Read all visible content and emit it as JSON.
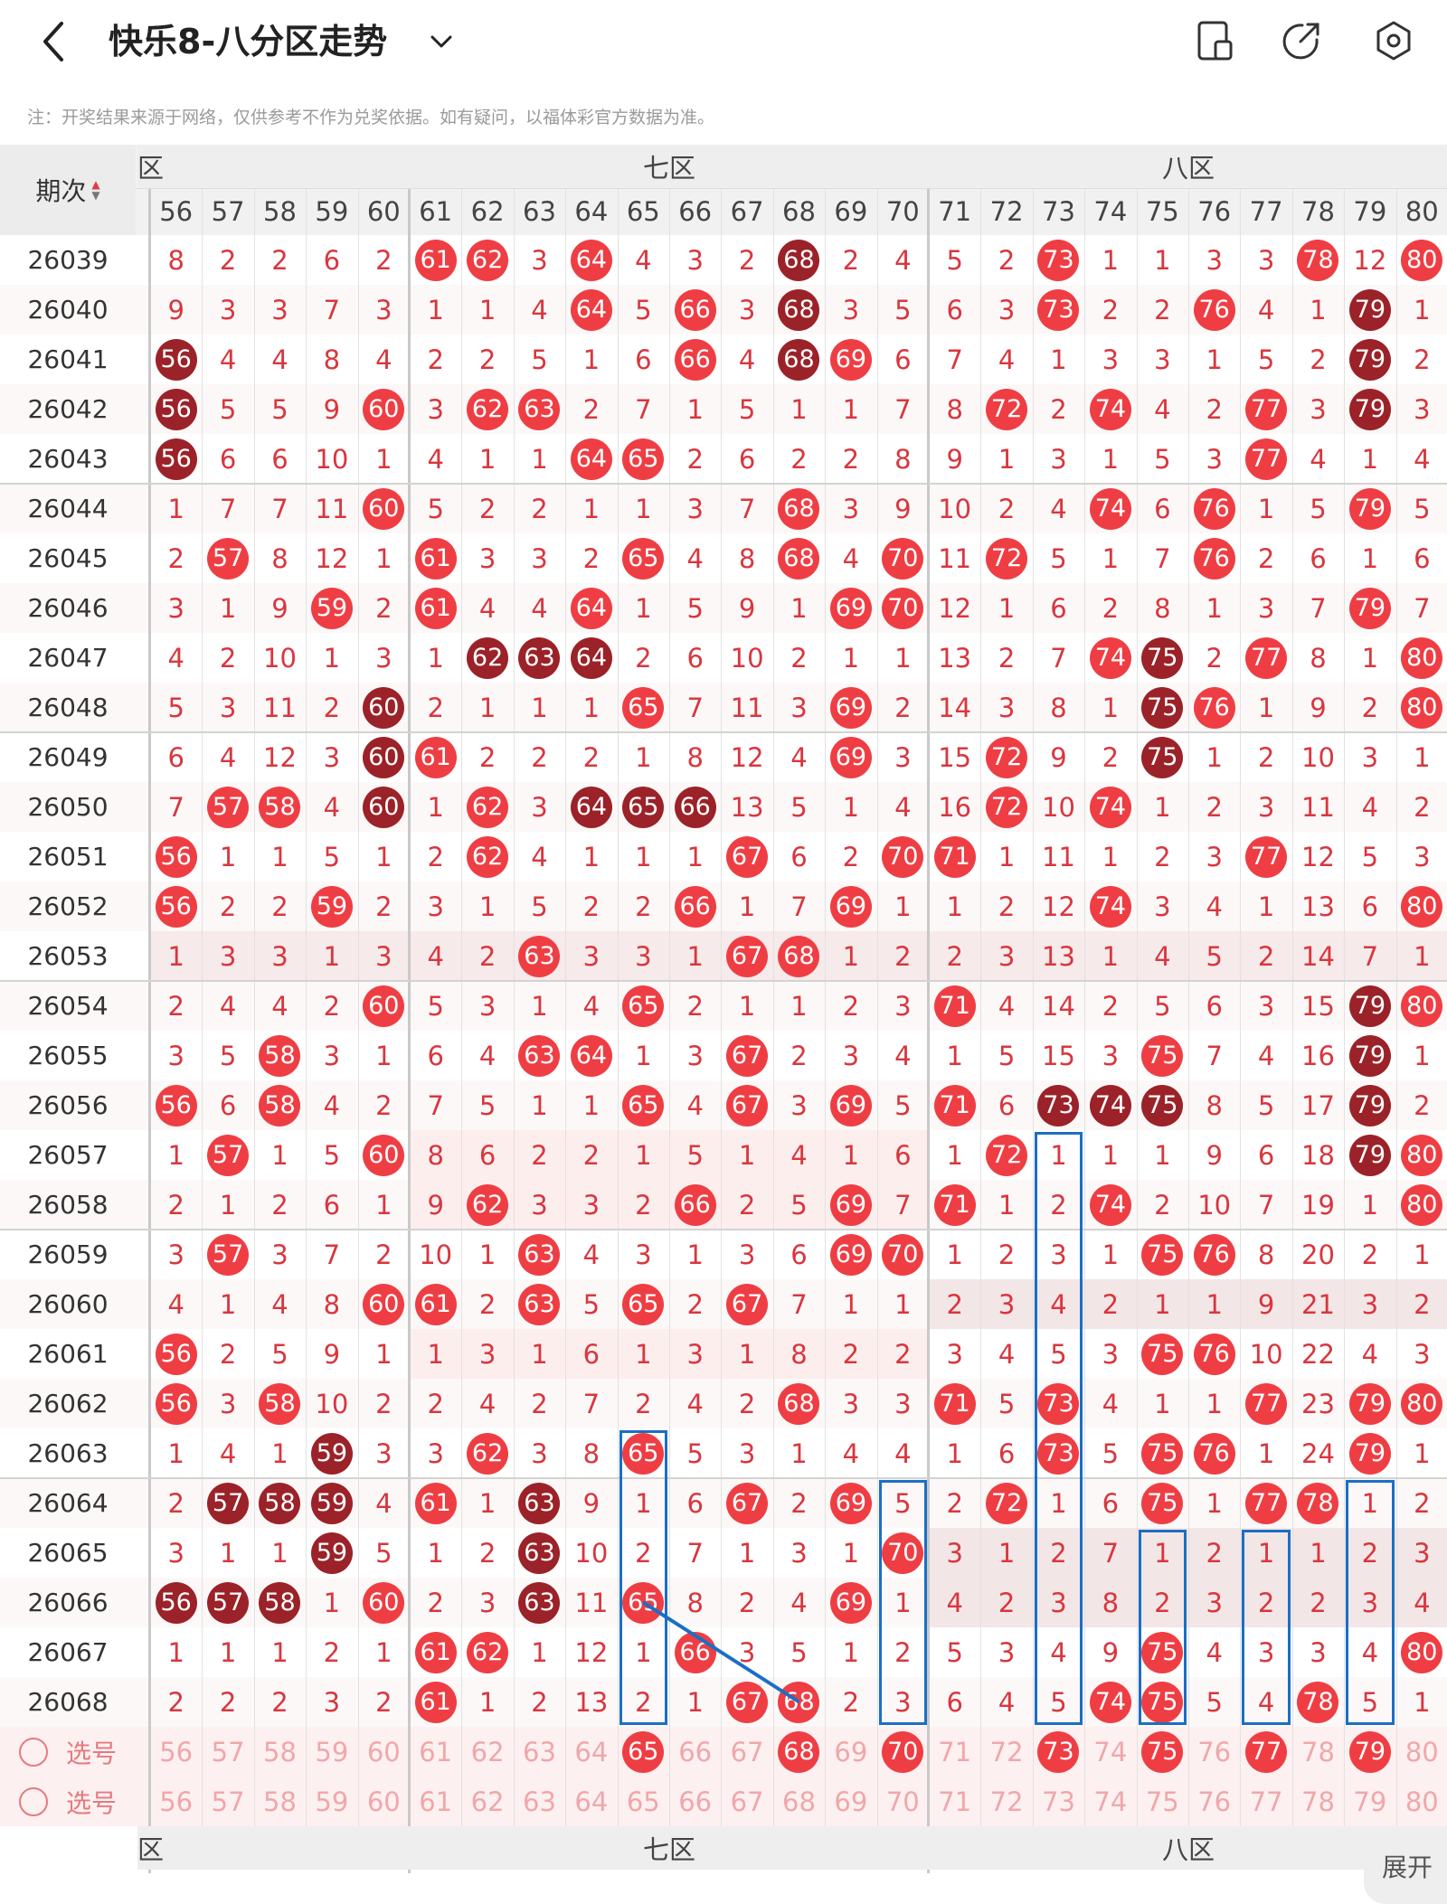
{
  "header": {
    "title": "快乐8-八分区走势",
    "back_icon": "back-chevron-icon",
    "dropdown_icon": "chevron-down-icon",
    "actions": [
      "tablet-icon",
      "share-icon",
      "settings-icon"
    ]
  },
  "note": "注：开奖结果来源于网络，仅供参考不作为兑奖依据。如有疑问，以福体彩官方数据为准。",
  "table": {
    "period_header": "期次",
    "zones": [
      {
        "name": "六区",
        "shown": "区"
      },
      {
        "name": "七区",
        "shown": "七区"
      },
      {
        "name": "八区",
        "shown": "八区"
      }
    ],
    "numbers": [
      "56",
      "57",
      "58",
      "59",
      "60",
      "61",
      "62",
      "63",
      "64",
      "65",
      "66",
      "67",
      "68",
      "69",
      "70",
      "71",
      "72",
      "73",
      "74",
      "75",
      "76",
      "77",
      "78",
      "79",
      "80"
    ],
    "hot_color": "#ee3e44",
    "repeat_color": "#9b2228",
    "line_color": "#1b6fc4",
    "rows": [
      {
        "issue": "26039",
        "cells": [
          "8",
          "2",
          "2",
          "6",
          "2",
          "61",
          "62",
          "3",
          "64",
          "4",
          "3",
          "2",
          "R68",
          "2",
          "4",
          "5",
          "2",
          "73",
          "1",
          "1",
          "3",
          "3",
          "78",
          "12",
          "80"
        ]
      },
      {
        "issue": "26040",
        "cells": [
          "9",
          "3",
          "3",
          "7",
          "3",
          "1",
          "1",
          "4",
          "64",
          "5",
          "66",
          "3",
          "R68",
          "3",
          "5",
          "6",
          "3",
          "73",
          "2",
          "2",
          "76",
          "4",
          "1",
          "R79",
          "1"
        ]
      },
      {
        "issue": "26041",
        "cells": [
          "R56",
          "4",
          "4",
          "8",
          "4",
          "2",
          "2",
          "5",
          "1",
          "6",
          "66",
          "4",
          "R68",
          "69",
          "6",
          "7",
          "4",
          "1",
          "3",
          "3",
          "1",
          "5",
          "2",
          "R79",
          "2"
        ]
      },
      {
        "issue": "26042",
        "cells": [
          "R56",
          "5",
          "5",
          "9",
          "60",
          "3",
          "62",
          "63",
          "2",
          "7",
          "1",
          "5",
          "1",
          "1",
          "7",
          "8",
          "72",
          "2",
          "74",
          "4",
          "2",
          "77",
          "3",
          "R79",
          "3"
        ]
      },
      {
        "issue": "26043",
        "cells": [
          "R56",
          "6",
          "6",
          "10",
          "1",
          "4",
          "1",
          "1",
          "64",
          "65",
          "2",
          "6",
          "2",
          "2",
          "8",
          "9",
          "1",
          "3",
          "1",
          "5",
          "3",
          "77",
          "4",
          "1",
          "4"
        ]
      },
      {
        "issue": "26044",
        "cells": [
          "1",
          "7",
          "7",
          "11",
          "60",
          "5",
          "2",
          "2",
          "1",
          "1",
          "3",
          "7",
          "68",
          "3",
          "9",
          "10",
          "2",
          "4",
          "74",
          "6",
          "76",
          "1",
          "5",
          "79",
          "5"
        ]
      },
      {
        "issue": "26045",
        "cells": [
          "2",
          "57",
          "8",
          "12",
          "1",
          "61",
          "3",
          "3",
          "2",
          "65",
          "4",
          "8",
          "68",
          "4",
          "70",
          "11",
          "72",
          "5",
          "1",
          "7",
          "76",
          "2",
          "6",
          "1",
          "6"
        ]
      },
      {
        "issue": "26046",
        "cells": [
          "3",
          "1",
          "9",
          "59",
          "2",
          "61",
          "4",
          "4",
          "64",
          "1",
          "5",
          "9",
          "1",
          "69",
          "70",
          "12",
          "1",
          "6",
          "2",
          "8",
          "1",
          "3",
          "7",
          "79",
          "7"
        ]
      },
      {
        "issue": "26047",
        "cells": [
          "4",
          "2",
          "10",
          "1",
          "3",
          "1",
          "R62",
          "R63",
          "R64",
          "2",
          "6",
          "10",
          "2",
          "1",
          "1",
          "13",
          "2",
          "7",
          "74",
          "R75",
          "2",
          "77",
          "8",
          "1",
          "80"
        ]
      },
      {
        "issue": "26048",
        "cells": [
          "5",
          "3",
          "11",
          "2",
          "R60",
          "2",
          "1",
          "1",
          "1",
          "65",
          "7",
          "11",
          "3",
          "69",
          "2",
          "14",
          "3",
          "8",
          "1",
          "R75",
          "76",
          "1",
          "9",
          "2",
          "80"
        ]
      },
      {
        "issue": "26049",
        "cells": [
          "6",
          "4",
          "12",
          "3",
          "R60",
          "61",
          "2",
          "2",
          "2",
          "1",
          "8",
          "12",
          "4",
          "69",
          "3",
          "15",
          "72",
          "9",
          "2",
          "R75",
          "1",
          "2",
          "10",
          "3",
          "1"
        ]
      },
      {
        "issue": "26050",
        "cells": [
          "7",
          "57",
          "58",
          "4",
          "R60",
          "1",
          "62",
          "3",
          "R64",
          "R65",
          "R66",
          "13",
          "5",
          "1",
          "4",
          "16",
          "72",
          "10",
          "74",
          "1",
          "2",
          "3",
          "11",
          "4",
          "2"
        ]
      },
      {
        "issue": "26051",
        "cells": [
          "56",
          "1",
          "1",
          "5",
          "1",
          "2",
          "62",
          "4",
          "1",
          "1",
          "1",
          "67",
          "6",
          "2",
          "70",
          "71",
          "1",
          "11",
          "1",
          "2",
          "3",
          "77",
          "12",
          "5",
          "3"
        ]
      },
      {
        "issue": "26052",
        "cells": [
          "56",
          "2",
          "2",
          "59",
          "2",
          "3",
          "1",
          "5",
          "2",
          "2",
          "66",
          "1",
          "7",
          "69",
          "1",
          "1",
          "2",
          "12",
          "74",
          "3",
          "4",
          "1",
          "13",
          "6",
          "80"
        ]
      },
      {
        "issue": "26053",
        "cells": [
          "1",
          "3",
          "3",
          "1",
          "3",
          "4",
          "2",
          "63",
          "3",
          "3",
          "1",
          "67",
          "68",
          "1",
          "2",
          "2",
          "3",
          "13",
          "1",
          "4",
          "5",
          "2",
          "14",
          "7",
          "1"
        ]
      },
      {
        "issue": "26054",
        "cells": [
          "2",
          "4",
          "4",
          "2",
          "60",
          "5",
          "3",
          "1",
          "4",
          "65",
          "2",
          "1",
          "1",
          "2",
          "3",
          "71",
          "4",
          "14",
          "2",
          "5",
          "6",
          "3",
          "15",
          "R79",
          "80"
        ]
      },
      {
        "issue": "26055",
        "cells": [
          "3",
          "5",
          "58",
          "3",
          "1",
          "6",
          "4",
          "63",
          "64",
          "1",
          "3",
          "67",
          "2",
          "3",
          "4",
          "1",
          "5",
          "15",
          "3",
          "75",
          "7",
          "4",
          "16",
          "R79",
          "1"
        ]
      },
      {
        "issue": "26056",
        "cells": [
          "56",
          "6",
          "58",
          "4",
          "2",
          "7",
          "5",
          "1",
          "1",
          "65",
          "4",
          "67",
          "3",
          "69",
          "5",
          "71",
          "6",
          "R73",
          "R74",
          "R75",
          "8",
          "5",
          "17",
          "R79",
          "2"
        ]
      },
      {
        "issue": "26057",
        "cells": [
          "1",
          "57",
          "1",
          "5",
          "60",
          "8",
          "6",
          "2",
          "2",
          "1",
          "5",
          "1",
          "4",
          "1",
          "6",
          "1",
          "72",
          "1",
          "1",
          "1",
          "9",
          "6",
          "18",
          "R79",
          "80"
        ]
      },
      {
        "issue": "26058",
        "cells": [
          "2",
          "1",
          "2",
          "6",
          "1",
          "9",
          "62",
          "3",
          "3",
          "2",
          "66",
          "2",
          "5",
          "69",
          "7",
          "71",
          "1",
          "2",
          "74",
          "2",
          "10",
          "7",
          "19",
          "1",
          "80"
        ]
      },
      {
        "issue": "26059",
        "cells": [
          "3",
          "57",
          "3",
          "7",
          "2",
          "10",
          "1",
          "63",
          "4",
          "3",
          "1",
          "3",
          "6",
          "69",
          "70",
          "1",
          "2",
          "3",
          "1",
          "75",
          "76",
          "8",
          "20",
          "2",
          "1"
        ]
      },
      {
        "issue": "26060",
        "cells": [
          "4",
          "1",
          "4",
          "8",
          "60",
          "61",
          "2",
          "63",
          "5",
          "65",
          "2",
          "67",
          "7",
          "1",
          "1",
          "2",
          "3",
          "4",
          "2",
          "1",
          "1",
          "9",
          "21",
          "3",
          "2"
        ]
      },
      {
        "issue": "26061",
        "cells": [
          "56",
          "2",
          "5",
          "9",
          "1",
          "1",
          "3",
          "1",
          "6",
          "1",
          "3",
          "1",
          "8",
          "2",
          "2",
          "3",
          "4",
          "5",
          "3",
          "75",
          "76",
          "10",
          "22",
          "4",
          "3"
        ]
      },
      {
        "issue": "26062",
        "cells": [
          "56",
          "3",
          "58",
          "10",
          "2",
          "2",
          "4",
          "2",
          "7",
          "2",
          "4",
          "2",
          "68",
          "3",
          "3",
          "71",
          "5",
          "73",
          "4",
          "1",
          "1",
          "77",
          "23",
          "79",
          "80"
        ]
      },
      {
        "issue": "26063",
        "cells": [
          "1",
          "4",
          "1",
          "R59",
          "3",
          "3",
          "62",
          "3",
          "8",
          "65",
          "5",
          "3",
          "1",
          "4",
          "4",
          "1",
          "6",
          "73",
          "5",
          "75",
          "76",
          "1",
          "24",
          "79",
          "1"
        ]
      },
      {
        "issue": "26064",
        "cells": [
          "2",
          "R57",
          "R58",
          "R59",
          "4",
          "61",
          "1",
          "R63",
          "9",
          "1",
          "6",
          "67",
          "2",
          "69",
          "5",
          "2",
          "72",
          "1",
          "6",
          "75",
          "1",
          "77",
          "78",
          "1",
          "2"
        ]
      },
      {
        "issue": "26065",
        "cells": [
          "3",
          "1",
          "1",
          "R59",
          "5",
          "1",
          "2",
          "R63",
          "10",
          "2",
          "7",
          "1",
          "3",
          "1",
          "70",
          "3",
          "1",
          "2",
          "7",
          "1",
          "2",
          "1",
          "1",
          "2",
          "3"
        ]
      },
      {
        "issue": "26066",
        "cells": [
          "R56",
          "R57",
          "R58",
          "1",
          "60",
          "2",
          "3",
          "R63",
          "11",
          "65",
          "8",
          "2",
          "4",
          "69",
          "1",
          "4",
          "2",
          "3",
          "8",
          "2",
          "3",
          "2",
          "2",
          "3",
          "4"
        ]
      },
      {
        "issue": "26067",
        "cells": [
          "1",
          "1",
          "1",
          "2",
          "1",
          "61",
          "62",
          "1",
          "12",
          "1",
          "66",
          "3",
          "5",
          "1",
          "2",
          "5",
          "3",
          "4",
          "9",
          "75",
          "4",
          "3",
          "3",
          "4",
          "80"
        ]
      },
      {
        "issue": "26068",
        "cells": [
          "2",
          "2",
          "2",
          "3",
          "2",
          "61",
          "1",
          "2",
          "13",
          "2",
          "1",
          "67",
          "68",
          "2",
          "3",
          "6",
          "4",
          "5",
          "74",
          "75",
          "5",
          "4",
          "78",
          "5",
          "1"
        ]
      }
    ],
    "pick_label": "选号",
    "pick_rows": [
      {
        "cells": [
          "56",
          "57",
          "58",
          "59",
          "60",
          "61",
          "62",
          "63",
          "64",
          "65",
          "66",
          "67",
          "68",
          "69",
          "70",
          "71",
          "72",
          "73",
          "74",
          "75",
          "76",
          "77",
          "78",
          "79",
          "80"
        ],
        "selected": [
          "65",
          "68",
          "70",
          "73",
          "75",
          "77",
          "79"
        ]
      },
      {
        "cells": [
          "56",
          "57",
          "58",
          "59",
          "60",
          "61",
          "62",
          "63",
          "64",
          "65",
          "66",
          "67",
          "68",
          "69",
          "70",
          "71",
          "72",
          "73",
          "74",
          "75",
          "76",
          "77",
          "78",
          "79",
          "80"
        ],
        "selected": []
      }
    ],
    "expand_label": "展开"
  }
}
